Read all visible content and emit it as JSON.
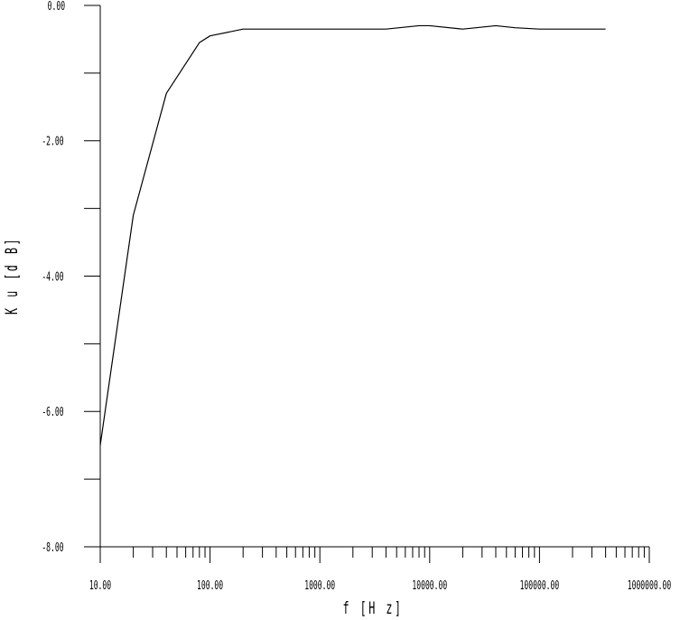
{
  "chart_data": {
    "type": "line",
    "xlabel": "f [H z]",
    "ylabel": "K u [d B]",
    "x_scale": "log",
    "xlim": [
      10,
      1000000
    ],
    "ylim": [
      -8,
      0
    ],
    "grid": false,
    "legend": "none",
    "x_tick_labels": [
      "10.00",
      "100.00",
      "1000.00",
      "10000.00",
      "100000.00",
      "1000000.00"
    ],
    "x_tick_values": [
      10,
      100,
      1000,
      10000,
      100000,
      1000000
    ],
    "y_tick_labels": [
      "0.00",
      "-2.00",
      "-4.00",
      "-6.00",
      "-8.00"
    ],
    "y_tick_values": [
      0,
      -2,
      -4,
      -6,
      -8
    ],
    "y_minor_tick_values": [
      -1,
      -3,
      -5,
      -7
    ],
    "series": [
      {
        "color": "#000000",
        "x": [
          10,
          20,
          40,
          80,
          100,
          200,
          400,
          1000,
          4000,
          8000,
          10000,
          20000,
          40000,
          60000,
          100000,
          200000,
          400000
        ],
        "y": [
          -6.5,
          -3.1,
          -1.3,
          -0.55,
          -0.45,
          -0.35,
          -0.35,
          -0.35,
          -0.35,
          -0.3,
          -0.3,
          -0.35,
          -0.3,
          -0.33,
          -0.35,
          -0.35,
          -0.35
        ]
      }
    ]
  }
}
